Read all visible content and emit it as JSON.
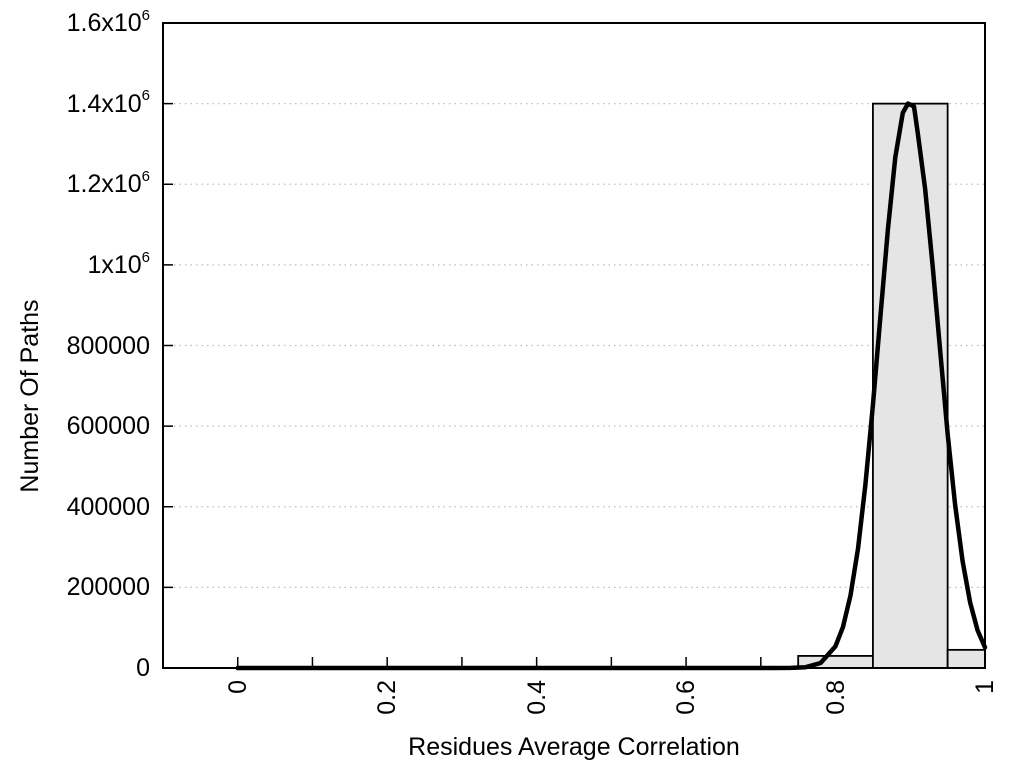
{
  "figure": {
    "background": "#ffffff",
    "title": ""
  },
  "chart_data": {
    "type": "bar",
    "subtype": "histogram_with_fitted_curve",
    "title": "",
    "xlabel": "Residues Average Correlation",
    "ylabel": "Number Of Paths",
    "xlim": [
      -0.1,
      1.0
    ],
    "ylim": [
      0,
      1600000
    ],
    "grid": {
      "y": true,
      "x": false,
      "style": "dotted",
      "color": "#bdbdbd"
    },
    "legend": "none",
    "border_color": "#000000",
    "tick_color": "#000000",
    "bar_fill": "#e5e5e5",
    "bar_border": "#000000",
    "curve_color": "#000000",
    "x_minor_ticks": [
      0,
      0.1,
      0.2,
      0.3,
      0.4,
      0.5,
      0.6,
      0.7,
      0.8,
      0.9,
      1.0
    ],
    "x_ticks": [
      {
        "value": 0.0,
        "label": "0"
      },
      {
        "value": 0.2,
        "label": "0.2"
      },
      {
        "value": 0.4,
        "label": "0.4"
      },
      {
        "value": 0.6,
        "label": "0.6"
      },
      {
        "value": 0.8,
        "label": "0.8"
      },
      {
        "value": 1.0,
        "label": "1"
      }
    ],
    "y_ticks": [
      {
        "value": 0,
        "label": "0",
        "sup": ""
      },
      {
        "value": 200000,
        "label": "200000",
        "sup": ""
      },
      {
        "value": 400000,
        "label": "400000",
        "sup": ""
      },
      {
        "value": 600000,
        "label": "600000",
        "sup": ""
      },
      {
        "value": 800000,
        "label": "800000",
        "sup": ""
      },
      {
        "value": 1000000,
        "label": "1x10",
        "sup": "6"
      },
      {
        "value": 1200000,
        "label": "1.2x10",
        "sup": "6"
      },
      {
        "value": 1400000,
        "label": "1.4x10",
        "sup": "6"
      },
      {
        "value": 1600000,
        "label": "1.6x10",
        "sup": "6"
      }
    ],
    "bars": [
      {
        "bin_start": 0.75,
        "bin_end": 0.85,
        "count": 30000
      },
      {
        "bin_start": 0.85,
        "bin_end": 0.95,
        "count": 1400000
      },
      {
        "bin_start": 0.95,
        "bin_end": 1.0,
        "count": 45000
      }
    ],
    "curve": {
      "name": "fitted distribution",
      "peak_x": 0.897,
      "peak_y": 1400000,
      "points": [
        [
          0.0,
          0
        ],
        [
          0.1,
          0
        ],
        [
          0.2,
          0
        ],
        [
          0.3,
          0
        ],
        [
          0.4,
          0
        ],
        [
          0.5,
          0
        ],
        [
          0.6,
          0
        ],
        [
          0.65,
          0
        ],
        [
          0.7,
          0
        ],
        [
          0.72,
          30
        ],
        [
          0.74,
          280
        ],
        [
          0.76,
          2100
        ],
        [
          0.78,
          12300
        ],
        [
          0.8,
          54000
        ],
        [
          0.81,
          102000
        ],
        [
          0.82,
          180000
        ],
        [
          0.83,
          296000
        ],
        [
          0.84,
          455000
        ],
        [
          0.85,
          652000
        ],
        [
          0.86,
          872000
        ],
        [
          0.87,
          1088000
        ],
        [
          0.88,
          1267000
        ],
        [
          0.89,
          1377000
        ],
        [
          0.897,
          1400000
        ],
        [
          0.905,
          1393000
        ],
        [
          0.91,
          1328000
        ],
        [
          0.92,
          1187000
        ],
        [
          0.93,
          996000
        ],
        [
          0.94,
          786000
        ],
        [
          0.95,
          582000
        ],
        [
          0.96,
          405000
        ],
        [
          0.97,
          265000
        ],
        [
          0.98,
          163000
        ],
        [
          0.99,
          94000
        ],
        [
          1.0,
          51000
        ]
      ]
    }
  }
}
